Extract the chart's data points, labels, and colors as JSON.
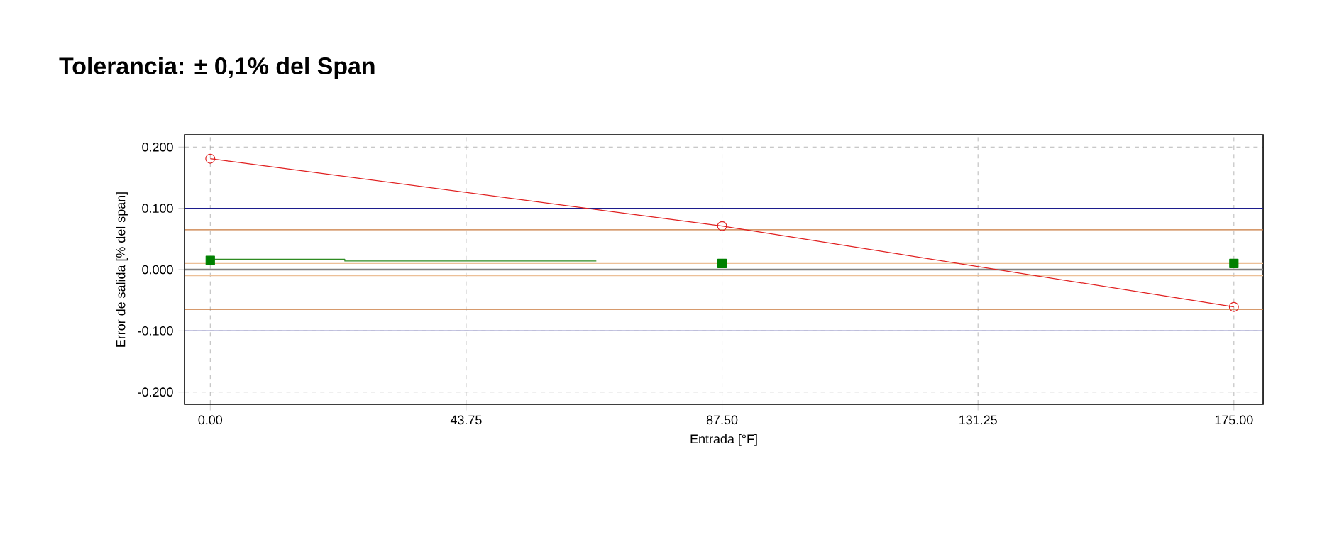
{
  "chart_data": {
    "type": "line",
    "title": "Tolerancia: ± 0,1% del Span",
    "xlabel": "Entrada [°F]",
    "ylabel": "Error de salida [% del span]",
    "xlim": [
      -4.4,
      180
    ],
    "ylim": [
      -0.22,
      0.22
    ],
    "xticks": [
      {
        "value": 0,
        "label": "0.00"
      },
      {
        "value": 43.75,
        "label": "43.75"
      },
      {
        "value": 87.5,
        "label": "87.50"
      },
      {
        "value": 131.25,
        "label": "131.25"
      },
      {
        "value": 175,
        "label": "175.00"
      }
    ],
    "yticks": [
      {
        "value": -0.2,
        "label": "-0.200"
      },
      {
        "value": -0.1,
        "label": "-0.100"
      },
      {
        "value": 0,
        "label": "0.000"
      },
      {
        "value": 0.1,
        "label": "0.100"
      },
      {
        "value": 0.2,
        "label": "0.200"
      }
    ],
    "grid": true,
    "ref_lines": [
      {
        "axis": "y",
        "value": 0,
        "color": "#808080"
      },
      {
        "axis": "y",
        "value": 0.1,
        "color": "#1c1c8c"
      },
      {
        "axis": "y",
        "value": -0.1,
        "color": "#1c1c8c"
      },
      {
        "axis": "y",
        "value": 0.065,
        "color": "#c8783c"
      },
      {
        "axis": "y",
        "value": -0.065,
        "color": "#c8783c"
      },
      {
        "axis": "y",
        "value": 0.01,
        "color": "#ecc098"
      },
      {
        "axis": "y",
        "value": -0.01,
        "color": "#ecc098"
      }
    ],
    "series": [
      {
        "x": [
          0,
          23,
          23,
          66
        ],
        "values": [
          0.017,
          0.017,
          0.014,
          0.014
        ],
        "color": "#2e8b22",
        "marker": "none",
        "line_style": "solid"
      },
      {
        "type": "scatter",
        "x": [
          0,
          87.5,
          175
        ],
        "values": [
          0.015,
          0.01,
          0.01
        ],
        "color": "#008000",
        "marker": "square"
      },
      {
        "x": [
          0,
          87.5,
          175
        ],
        "values": [
          0.181,
          0.071,
          -0.061
        ],
        "color": "#e02020",
        "marker": "circle",
        "line_style": "solid"
      }
    ]
  }
}
